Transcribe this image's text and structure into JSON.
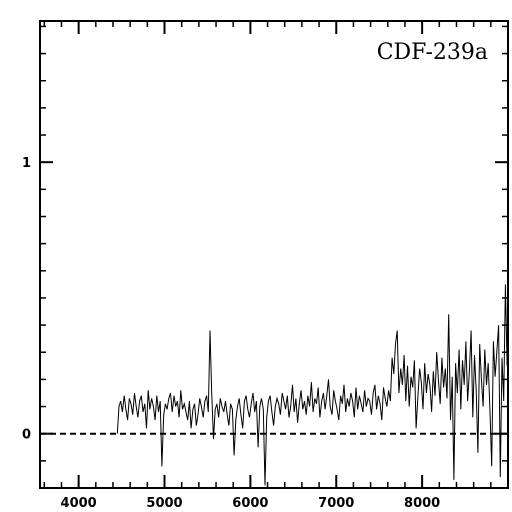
{
  "chart_data": {
    "type": "line",
    "title": "CDF-239a",
    "xlabel": "",
    "ylabel": "",
    "xlim": [
      3550,
      9000
    ],
    "ylim": [
      -0.2,
      1.52
    ],
    "grid": false,
    "x_ticks": [
      4000,
      5000,
      6000,
      7000,
      8000
    ],
    "y_ticks": [
      0,
      1
    ],
    "x_minor_step": 200,
    "y_minor_step": 0.1,
    "reference_line": {
      "y": 0,
      "style": "dashed"
    },
    "series": [
      {
        "x_start": 4450,
        "x_end": 8990,
        "x_step": 20,
        "values": [
          0.0,
          0.1,
          0.12,
          0.08,
          0.14,
          0.09,
          0.05,
          0.13,
          0.11,
          0.07,
          0.15,
          0.1,
          0.06,
          0.12,
          0.14,
          0.08,
          0.11,
          0.02,
          0.16,
          0.09,
          0.13,
          0.1,
          0.05,
          0.14,
          0.08,
          0.12,
          -0.12,
          0.07,
          0.11,
          0.09,
          0.13,
          0.15,
          0.08,
          0.14,
          0.1,
          0.12,
          0.06,
          0.16,
          0.09,
          0.11,
          0.08,
          0.05,
          0.12,
          0.02,
          0.09,
          0.11,
          0.03,
          0.07,
          0.13,
          0.1,
          0.06,
          0.12,
          0.14,
          0.08,
          0.38,
          0.15,
          -0.02,
          0.09,
          0.11,
          0.06,
          0.13,
          0.1,
          0.08,
          0.12,
          0.07,
          0.03,
          0.11,
          0.09,
          -0.08,
          0.05,
          0.1,
          0.13,
          0.07,
          0.02,
          0.12,
          0.14,
          0.09,
          0.06,
          0.11,
          0.15,
          0.08,
          0.12,
          -0.05,
          0.1,
          0.13,
          0.09,
          -0.19,
          0.06,
          0.12,
          0.14,
          0.08,
          0.03,
          0.1,
          0.13,
          0.11,
          0.07,
          0.15,
          0.12,
          0.09,
          0.14,
          0.06,
          0.1,
          0.18,
          0.08,
          0.13,
          0.04,
          0.11,
          0.16,
          0.09,
          0.12,
          0.07,
          0.14,
          0.1,
          0.19,
          0.08,
          0.13,
          0.11,
          0.17,
          0.06,
          0.12,
          0.15,
          0.09,
          0.14,
          0.2,
          0.1,
          0.07,
          0.16,
          0.12,
          0.09,
          0.05,
          0.14,
          0.11,
          0.18,
          0.08,
          0.13,
          0.1,
          0.15,
          0.12,
          0.06,
          0.17,
          0.09,
          0.14,
          0.11,
          0.08,
          0.16,
          0.1,
          0.13,
          0.12,
          0.07,
          0.15,
          0.18,
          0.09,
          0.14,
          0.11,
          0.05,
          0.17,
          0.13,
          0.1,
          0.16,
          0.12,
          0.28,
          0.22,
          0.33,
          0.38,
          0.15,
          0.24,
          0.18,
          0.29,
          0.12,
          0.25,
          0.1,
          0.21,
          0.17,
          0.27,
          0.02,
          0.13,
          0.24,
          0.19,
          0.09,
          0.26,
          0.15,
          0.22,
          0.18,
          0.08,
          0.23,
          0.14,
          0.3,
          0.2,
          0.11,
          0.28,
          0.17,
          0.24,
          0.13,
          0.44,
          0.05,
          0.21,
          -0.17,
          0.26,
          0.15,
          0.31,
          0.09,
          0.27,
          0.18,
          0.34,
          0.12,
          0.23,
          0.38,
          0.06,
          0.29,
          0.16,
          -0.07,
          0.33,
          0.2,
          0.1,
          0.31,
          0.18,
          0.26,
          0.08,
          -0.12,
          0.34,
          0.21,
          0.3,
          0.4,
          -0.16,
          0.28,
          0.12,
          0.55,
          0.25
        ]
      }
    ]
  }
}
